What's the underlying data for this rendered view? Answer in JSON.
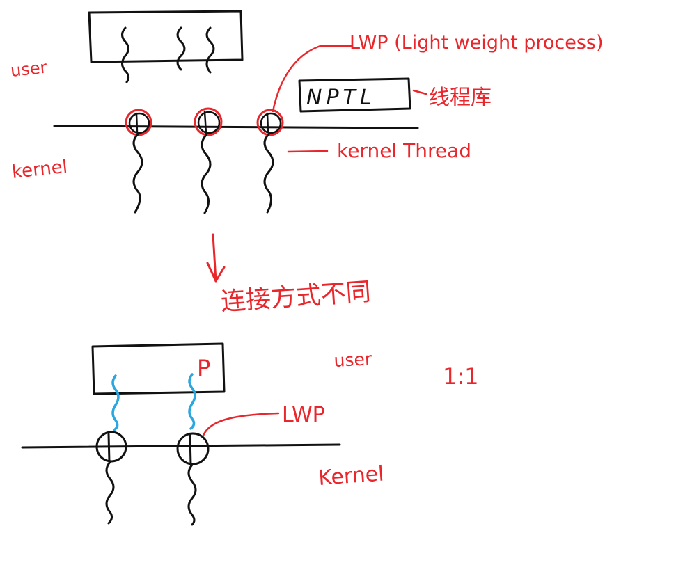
{
  "colors": {
    "ink": "#111111",
    "annotation": "#e8262b",
    "user_thread": "#2aa7e0"
  },
  "top_diagram": {
    "user_label": "user",
    "kernel_label": "kernel",
    "lwp_label": "LWP (Light weight process)",
    "nptl_label": "NPTL",
    "library_label": "线程库",
    "kernel_thread_label": "kernel Thread"
  },
  "transition_label": "连接方式不同",
  "bottom_diagram": {
    "process_label": "P",
    "user_label": "user",
    "ratio_label": "1:1",
    "lwp_label": "LWP",
    "kernel_label": "Kernel"
  }
}
